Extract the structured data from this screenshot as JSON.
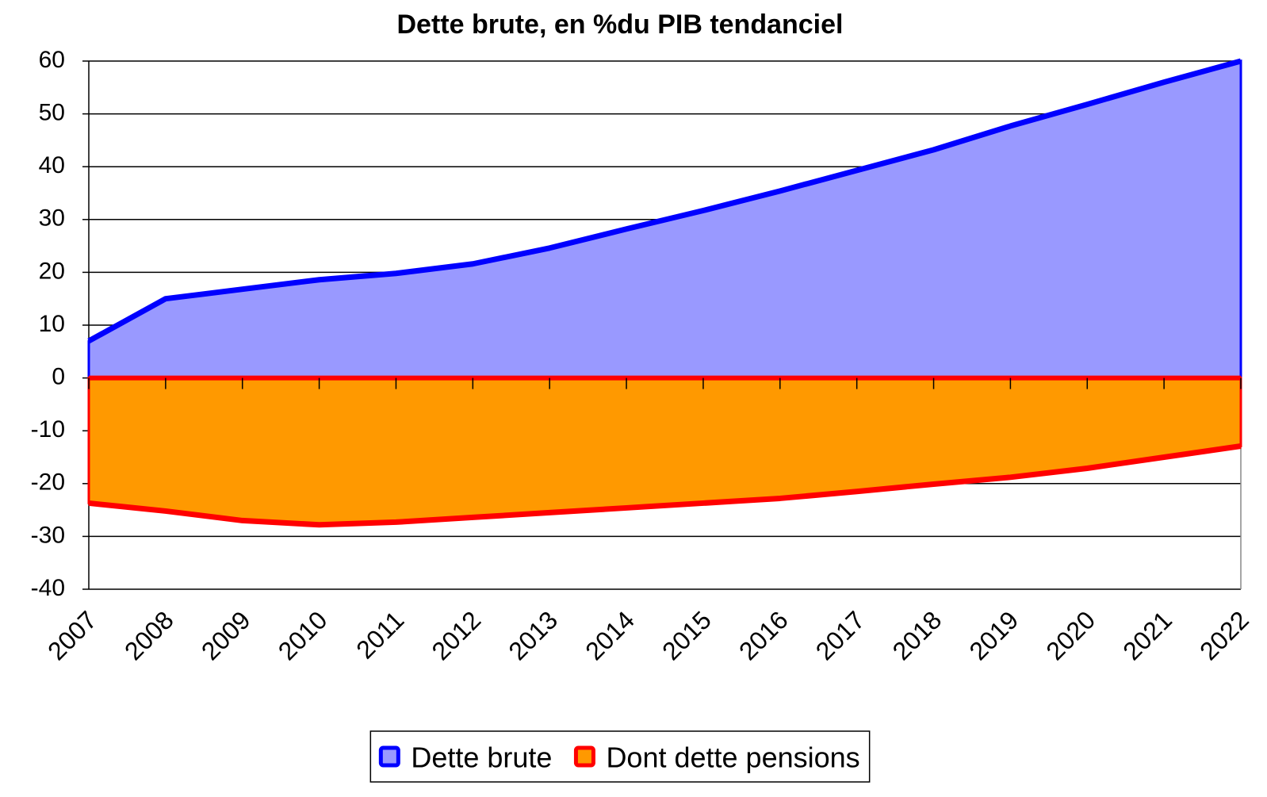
{
  "chart_data": {
    "type": "area",
    "title": "Dette brute, en %du PIB tendanciel",
    "categories": [
      "2007",
      "2008",
      "2009",
      "2010",
      "2011",
      "2012",
      "2013",
      "2014",
      "2015",
      "2016",
      "2017",
      "2018",
      "2019",
      "2020",
      "2021",
      "2022"
    ],
    "series": [
      {
        "name": "Dette brute",
        "color": "#0000ff",
        "fill": "#9999ff",
        "values": [
          7,
          15,
          16.8,
          18.6,
          19.8,
          21.6,
          24.6,
          28.2,
          31.7,
          35.4,
          39.3,
          43.2,
          47.7,
          51.8,
          56,
          60
        ]
      },
      {
        "name": "Dont dette pensions",
        "color": "#ff0000",
        "fill": "#ff9900",
        "values": [
          -23.7,
          -25.2,
          -27,
          -27.8,
          -27.3,
          -26.4,
          -25.5,
          -24.6,
          -23.7,
          -22.8,
          -21.5,
          -20.1,
          -18.8,
          -17.1,
          -15,
          -12.9
        ]
      }
    ],
    "ylim": [
      -40,
      60
    ],
    "yticks": [
      -40,
      -30,
      -20,
      -10,
      0,
      10,
      20,
      30,
      40,
      50,
      60
    ],
    "grid": true,
    "legend": "bottom"
  }
}
